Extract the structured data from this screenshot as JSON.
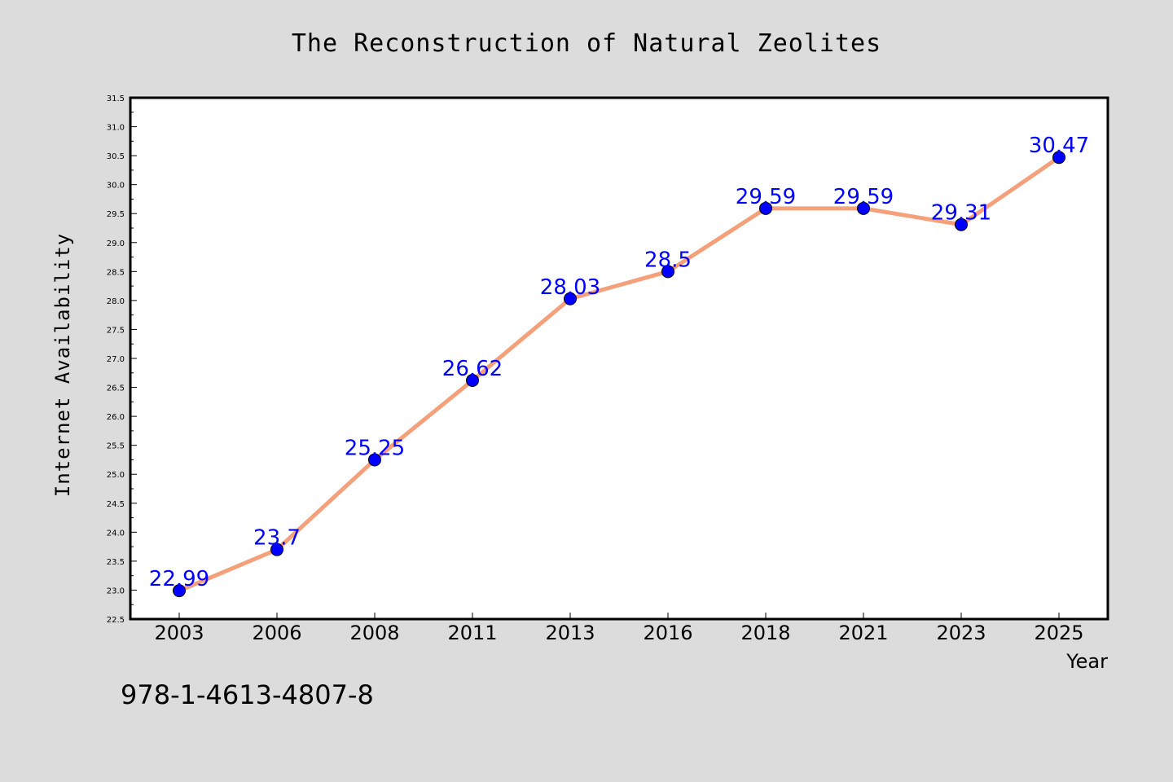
{
  "chart_data": {
    "type": "line",
    "title": "The Reconstruction of Natural Zeolites",
    "xlabel": "Year",
    "ylabel": "Internet Availability",
    "categories": [
      "2003",
      "2006",
      "2008",
      "2011",
      "2013",
      "2016",
      "2018",
      "2021",
      "2023",
      "2025"
    ],
    "series": [
      {
        "values": [
          22.99,
          23.7,
          25.25,
          26.62,
          28.03,
          28.5,
          29.59,
          29.59,
          29.31,
          30.47
        ],
        "line_color": "#f4a07a",
        "marker_color": "#0000ff"
      }
    ],
    "ylim": [
      22.5,
      31.5
    ],
    "yticks": [
      "22.5",
      "23.0",
      "23.5",
      "24.0",
      "24.5",
      "25.0",
      "25.5",
      "26.0",
      "26.5",
      "27.0",
      "27.5",
      "28.0",
      "28.5",
      "29.0",
      "29.5",
      "30.0",
      "30.5",
      "31.0",
      "31.5"
    ],
    "data_labels": [
      "22.99",
      "23.7",
      "25.25",
      "26.62",
      "28.03",
      "28.5",
      "29.59",
      "29.59",
      "29.31",
      "30.47"
    ],
    "grid": false,
    "legend": false,
    "plot_background": "#ffffff",
    "figure_background": "#dcdcdc"
  },
  "annotation": {
    "isbn": "978-1-4613-4807-8"
  }
}
